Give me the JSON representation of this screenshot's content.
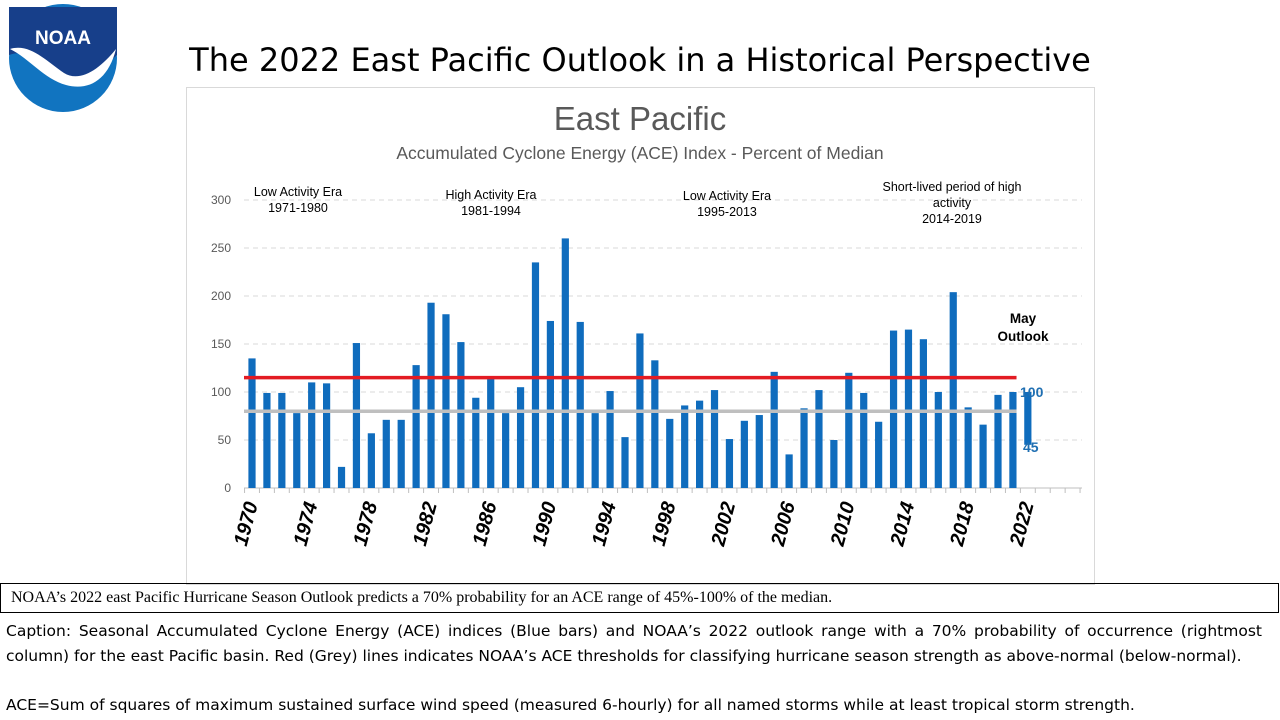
{
  "page": {
    "title": "The 2022 East Pacific Outlook in a Historical Perspective",
    "logo_text": "NOAA",
    "summary": "NOAA’s 2022 east Pacific Hurricane  Season Outlook predicts a 70% probability for an ACE range of 45%-100%  of the median.",
    "caption": "Caption: Seasonal Accumulated Cyclone Energy (ACE) indices (Blue bars) and NOAA’s 2022 outlook range with a 70% probability of occurrence (rightmost column) for the east Pacific basin. Red (Grey) lines indicates NOAA’s ACE thresholds for classifying hurricane season strength as above-normal (below-normal).",
    "ace_definition": "ACE=Sum of squares of maximum sustained surface wind speed (measured 6-hourly) for all named storms while at least tropical storm strength."
  },
  "chart_data": {
    "type": "bar",
    "title": "East Pacific",
    "subtitle": "Accumulated Cyclone Energy (ACE) Index - Percent of Median",
    "xlabel": "",
    "ylabel": "",
    "ylim": [
      0,
      300
    ],
    "yticks": [
      0,
      50,
      100,
      150,
      200,
      250,
      300
    ],
    "grid": "horizontal dashed",
    "years": [
      1970,
      1971,
      1972,
      1973,
      1974,
      1975,
      1976,
      1977,
      1978,
      1979,
      1980,
      1981,
      1982,
      1983,
      1984,
      1985,
      1986,
      1987,
      1988,
      1989,
      1990,
      1991,
      1992,
      1993,
      1994,
      1995,
      1996,
      1997,
      1998,
      1999,
      2000,
      2001,
      2002,
      2003,
      2004,
      2005,
      2006,
      2007,
      2008,
      2009,
      2010,
      2011,
      2012,
      2013,
      2014,
      2015,
      2016,
      2017,
      2018,
      2019,
      2020,
      2021
    ],
    "values": [
      135,
      99,
      99,
      78,
      110,
      109,
      22,
      151,
      57,
      71,
      71,
      128,
      193,
      181,
      152,
      94,
      114,
      78,
      105,
      235,
      174,
      260,
      173,
      78,
      101,
      53,
      161,
      133,
      72,
      86,
      91,
      102,
      51,
      70,
      76,
      121,
      35,
      83,
      102,
      50,
      120,
      99,
      69,
      164,
      165,
      155,
      100,
      204,
      84,
      66,
      97,
      100
    ],
    "x_tick_labels": [
      "1970",
      "1974",
      "1978",
      "1982",
      "1986",
      "1990",
      "1994",
      "1998",
      "2002",
      "2006",
      "2010",
      "2014",
      "2018",
      "2022"
    ],
    "outlook": {
      "year": 2022,
      "low": 45,
      "high": 100,
      "label": "May\nOutlook",
      "low_label": "45",
      "high_label": "100"
    },
    "thresholds": [
      {
        "name": "above-normal",
        "value": 115,
        "color": "#e31b23"
      },
      {
        "name": "below-normal",
        "value": 80,
        "color": "#bfbfbf"
      }
    ],
    "eras": [
      {
        "label": "Low Activity Era\n1971-1980",
        "start": 1971,
        "end": 1980
      },
      {
        "label": "High Activity Era\n1981-1994",
        "start": 1981,
        "end": 1994
      },
      {
        "label": "Low Activity Era\n1995-2013",
        "start": 1995,
        "end": 2013
      },
      {
        "label": "Short-lived period of high\nactivity\n2014-2019",
        "start": 2014,
        "end": 2019
      }
    ],
    "colors": {
      "bar": "#0f6cbd",
      "outlook_label": "#1f6fb2",
      "grid": "#d9d9d9",
      "axis": "#bfbfbf",
      "title": "#595959"
    }
  }
}
